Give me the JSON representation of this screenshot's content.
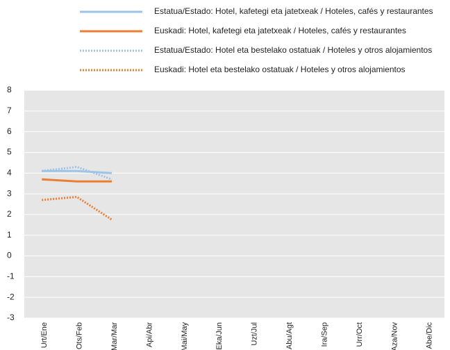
{
  "chart_data": {
    "type": "line",
    "categories": [
      "Urt/Ene",
      "Ots/Feb",
      "Mar/Mar",
      "Api/Abr",
      "Mai/May",
      "Eka/Jun",
      "Uzt/Jul",
      "Abu/Agt",
      "Ira/Sep",
      "Urr/Oct",
      "Aza/Nov",
      "Abe/Dic"
    ],
    "series": [
      {
        "name": "Estatua/Estado: Hotel, kafetegi eta jatetxeak / Hoteles, cafés y restaurantes",
        "color": "#9dc3e6",
        "style": "solid",
        "values": [
          4.1,
          4.1,
          4.0,
          null,
          null,
          null,
          null,
          null,
          null,
          null,
          null,
          null
        ]
      },
      {
        "name": "Euskadi: Hotel, kafetegi eta jatetxeak / Hoteles, cafés y restaurantes",
        "color": "#ed7d31",
        "style": "solid",
        "values": [
          3.7,
          3.6,
          3.6,
          null,
          null,
          null,
          null,
          null,
          null,
          null,
          null,
          null
        ]
      },
      {
        "name": "Estatua/Estado: Hotel eta bestelako ostatuak / Hoteles y otros alojamientos",
        "color": "#9dc3e6",
        "style": "dotted",
        "values": [
          4.1,
          4.3,
          3.7,
          null,
          null,
          null,
          null,
          null,
          null,
          null,
          null,
          null
        ]
      },
      {
        "name": "Euskadi: Hotel eta bestelako ostatuak / Hoteles y otros alojamientos",
        "color": "#ed7d31",
        "style": "dotted",
        "values": [
          2.7,
          2.85,
          1.75,
          null,
          null,
          null,
          null,
          null,
          null,
          null,
          null,
          null
        ]
      }
    ],
    "ylim": [
      -3,
      8
    ],
    "yticks": [
      -3,
      -2,
      -1,
      0,
      1,
      2,
      3,
      4,
      5,
      6,
      7,
      8
    ],
    "grid": true,
    "background": "#e6e6e6"
  }
}
